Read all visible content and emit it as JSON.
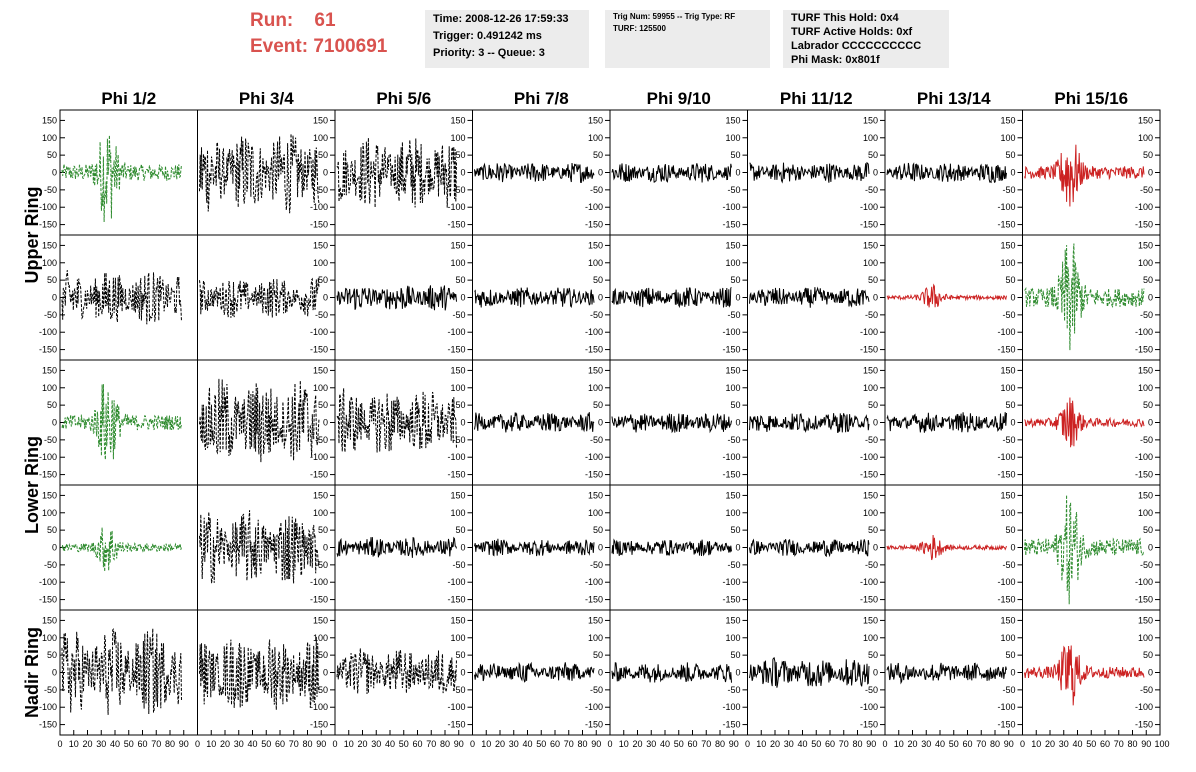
{
  "header": {
    "run_label": "Run:",
    "run_value": "61",
    "event_label": "Event:",
    "event_value": "7100691",
    "time_box": [
      "Time: 2008-12-26 17:59:33",
      "Trigger: 0.491242 ms",
      "Priority: 3 -- Queue: 3"
    ],
    "trig_box": [
      "Trig Num: 59955 -- Trig Type: RF",
      "",
      "TURF: 125500"
    ],
    "turf_box": [
      "TURF This Hold: 0x4",
      "TURF Active Holds: 0xf",
      "Labrador CCCCCCCCCC",
      "Phi Mask: 0x801f"
    ]
  },
  "chart_data": {
    "type": "line",
    "column_titles": [
      "Phi 1/2",
      "Phi 3/4",
      "Phi 5/6",
      "Phi 7/8",
      "Phi 9/10",
      "Phi 11/12",
      "Phi 13/14",
      "Phi 15/16"
    ],
    "ring_labels": [
      "Upper Ring",
      "Lower Ring",
      "Nadir Ring"
    ],
    "ylim": [
      -180,
      180
    ],
    "xlim": [
      0,
      100
    ],
    "y_ticks": [
      150,
      100,
      50,
      0,
      -50,
      -100,
      -150
    ],
    "y_tick_labels": [
      "150",
      "100",
      "50",
      "0",
      "-50",
      "-100",
      "-150"
    ],
    "x_ticks": [
      0,
      10,
      20,
      30,
      40,
      50,
      60,
      70,
      80,
      90
    ],
    "x_tick_labels": [
      "0",
      "10",
      "20",
      "30",
      "40",
      "50",
      "60",
      "70",
      "80",
      "90"
    ],
    "x_last_label": "100",
    "colors": {
      "black": "#000000",
      "green": "#2e8b2e",
      "red": "#cc2222"
    },
    "panels": [
      [
        "green",
        "black",
        "black",
        "black",
        "black",
        "black",
        "black",
        "red"
      ],
      [
        "black",
        "black",
        "black",
        "black",
        "black",
        "black",
        "red",
        "green"
      ],
      [
        "green",
        "black",
        "black",
        "black",
        "black",
        "black",
        "black",
        "red"
      ],
      [
        "green",
        "black",
        "black",
        "black",
        "black",
        "black",
        "red",
        "green"
      ],
      [
        "black",
        "black",
        "black",
        "black",
        "black",
        "black",
        "black",
        "red"
      ]
    ],
    "dashed": [
      [
        true,
        true,
        true,
        false,
        false,
        false,
        false,
        false
      ],
      [
        true,
        true,
        false,
        false,
        false,
        false,
        false,
        true
      ],
      [
        true,
        true,
        true,
        false,
        false,
        false,
        false,
        false
      ],
      [
        true,
        true,
        false,
        false,
        false,
        false,
        false,
        true
      ],
      [
        true,
        true,
        true,
        false,
        false,
        false,
        false,
        false
      ]
    ],
    "amplitude": [
      [
        160,
        120,
        110,
        30,
        30,
        30,
        30,
        120
      ],
      [
        80,
        60,
        40,
        30,
        30,
        30,
        40,
        180
      ],
      [
        150,
        130,
        100,
        30,
        30,
        30,
        30,
        80
      ],
      [
        80,
        110,
        30,
        25,
        25,
        25,
        40,
        170
      ],
      [
        130,
        110,
        70,
        30,
        30,
        45,
        30,
        110
      ]
    ]
  }
}
